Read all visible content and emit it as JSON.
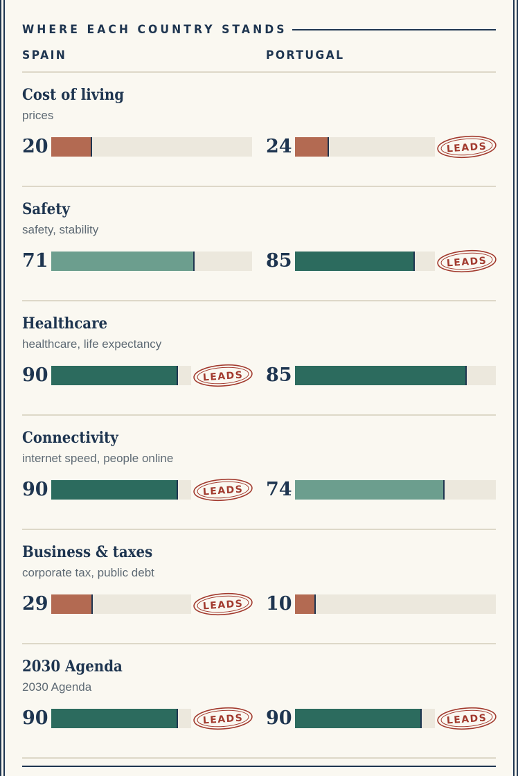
{
  "header": {
    "title": "WHERE EACH COUNTRY STANDS",
    "left_country": "SPAIN",
    "right_country": "PORTUGAL"
  },
  "badge_label": "LEADS",
  "colors": {
    "navy": "#1e3550",
    "high": "#2c6b5e",
    "mid": "#6c9e8e",
    "low": "#b36a52",
    "track": "#ece8dd",
    "badge": "#a23a2e"
  },
  "metrics": [
    {
      "title": "Cost of living",
      "subtitle": "prices",
      "spain": {
        "value": 20,
        "leads": false
      },
      "portugal": {
        "value": 24,
        "leads": true
      }
    },
    {
      "title": "Safety",
      "subtitle": "safety, stability",
      "spain": {
        "value": 71,
        "leads": false
      },
      "portugal": {
        "value": 85,
        "leads": true
      }
    },
    {
      "title": "Healthcare",
      "subtitle": "healthcare, life expectancy",
      "spain": {
        "value": 90,
        "leads": true
      },
      "portugal": {
        "value": 85,
        "leads": false
      }
    },
    {
      "title": "Connectivity",
      "subtitle": "internet speed, people online",
      "spain": {
        "value": 90,
        "leads": true
      },
      "portugal": {
        "value": 74,
        "leads": false
      }
    },
    {
      "title": "Business & taxes",
      "subtitle": "corporate tax, public debt",
      "spain": {
        "value": 29,
        "leads": true
      },
      "portugal": {
        "value": 10,
        "leads": false
      }
    },
    {
      "title": "2030 Agenda",
      "subtitle": "2030 Agenda",
      "spain": {
        "value": 90,
        "leads": true
      },
      "portugal": {
        "value": 90,
        "leads": true
      }
    }
  ]
}
